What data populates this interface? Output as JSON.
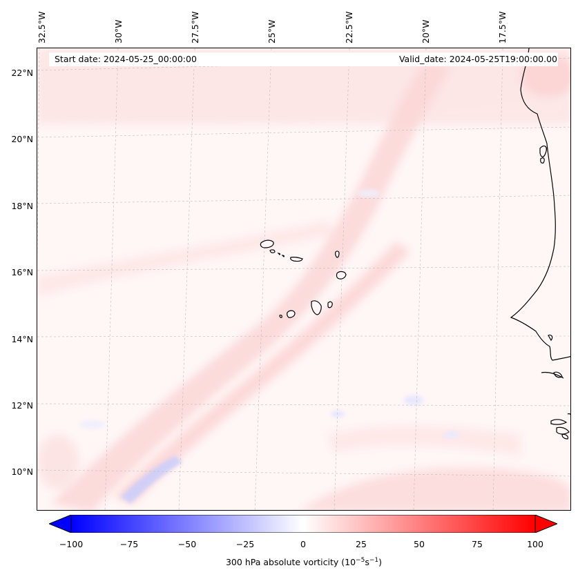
{
  "header": {
    "start_date": "Start date: 2024-05-25_00:00:00",
    "valid_date": "Valid_date: 2024-05-25T19:00:00.00"
  },
  "axes": {
    "longitude_labels": [
      "32.5°W",
      "30°W",
      "27.5°W",
      "25°W",
      "22.5°W",
      "20°W",
      "17.5°W"
    ],
    "latitude_labels": [
      "22°N",
      "20°N",
      "18°N",
      "16°N",
      "14°N",
      "12°N",
      "10°N"
    ]
  },
  "colorbar": {
    "ticks": [
      "−100",
      "−75",
      "−50",
      "−25",
      "0",
      "25",
      "50",
      "75",
      "100"
    ],
    "label_main": "300 hPa absolute vorticity (10",
    "label_exp1": "−5",
    "label_mid": "s",
    "label_exp2": "−1",
    "label_end": ")",
    "min_color": "#0000ff",
    "mid_color": "#ffffff",
    "max_color": "#ff0000"
  },
  "map": {
    "field_colors": {
      "weak_positive": "#fde6e6",
      "moderate_positive": "#fbcaca",
      "weak_negative": "#eceefe",
      "moderate_negative": "#c9ccfb"
    },
    "coastline_color": "#000000",
    "grid": "on"
  }
}
